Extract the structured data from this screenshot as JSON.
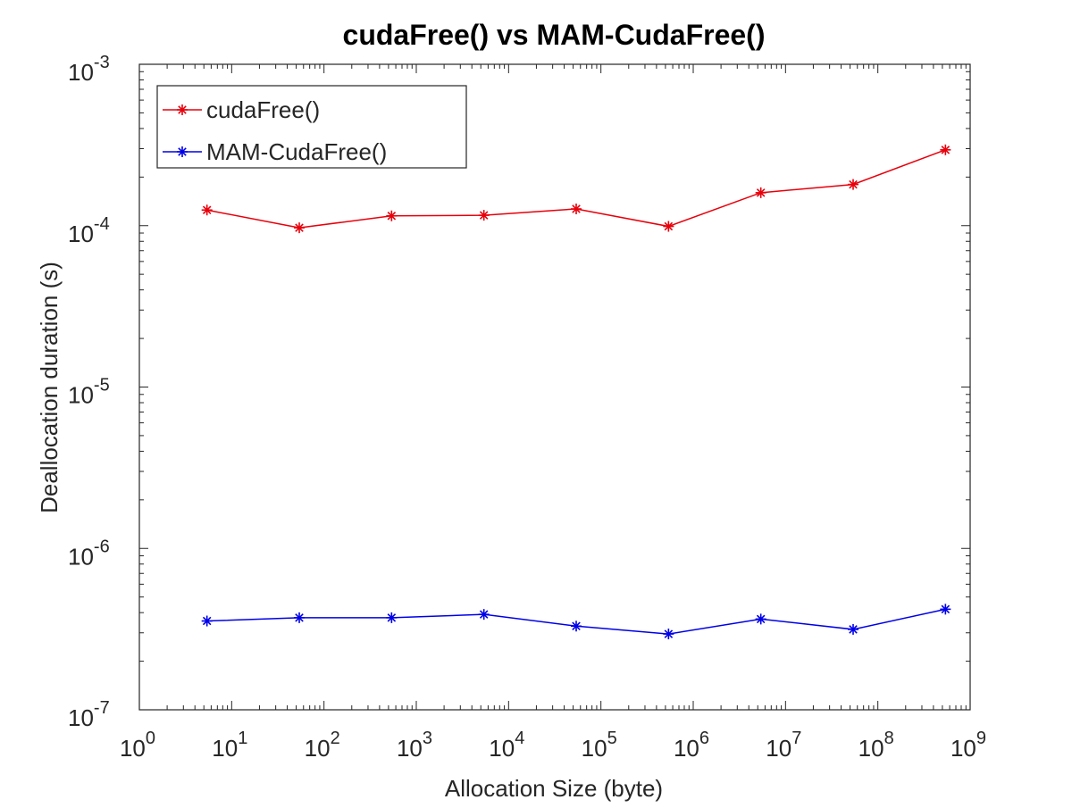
{
  "chart_data": {
    "type": "line",
    "title": "cudaFree() vs MAM-CudaFree()",
    "xlabel": "Allocation Size (byte)",
    "ylabel": "Deallocation duration (s)",
    "x_scale": "log",
    "y_scale": "log",
    "xlim": [
      1,
      1000000000
    ],
    "ylim": [
      1e-07,
      0.001
    ],
    "x_ticks": [
      {
        "base": "10",
        "exp": "0"
      },
      {
        "base": "10",
        "exp": "1"
      },
      {
        "base": "10",
        "exp": "2"
      },
      {
        "base": "10",
        "exp": "3"
      },
      {
        "base": "10",
        "exp": "4"
      },
      {
        "base": "10",
        "exp": "5"
      },
      {
        "base": "10",
        "exp": "6"
      },
      {
        "base": "10",
        "exp": "7"
      },
      {
        "base": "10",
        "exp": "8"
      },
      {
        "base": "10",
        "exp": "9"
      }
    ],
    "y_ticks": [
      {
        "base": "10",
        "exp": "-7"
      },
      {
        "base": "10",
        "exp": "-6"
      },
      {
        "base": "10",
        "exp": "-5"
      },
      {
        "base": "10",
        "exp": "-4"
      },
      {
        "base": "10",
        "exp": "-3"
      }
    ],
    "grid": false,
    "legend_position": "top-left",
    "marker": "asterisk",
    "x": [
      5.4,
      54,
      540,
      5400,
      54000,
      540000,
      5400000,
      54000000,
      540000000
    ],
    "series": [
      {
        "name": "cudaFree()",
        "color": "#e8000b",
        "values": [
          0.000125,
          9.7e-05,
          0.000115,
          0.000116,
          0.000127,
          9.9e-05,
          0.00016,
          0.00018,
          0.000295
        ]
      },
      {
        "name": "MAM-CudaFree()",
        "color": "#0000e8",
        "values": [
          3.55e-07,
          3.72e-07,
          3.72e-07,
          3.9e-07,
          3.3e-07,
          2.95e-07,
          3.65e-07,
          3.15e-07,
          4.2e-07
        ]
      }
    ]
  }
}
